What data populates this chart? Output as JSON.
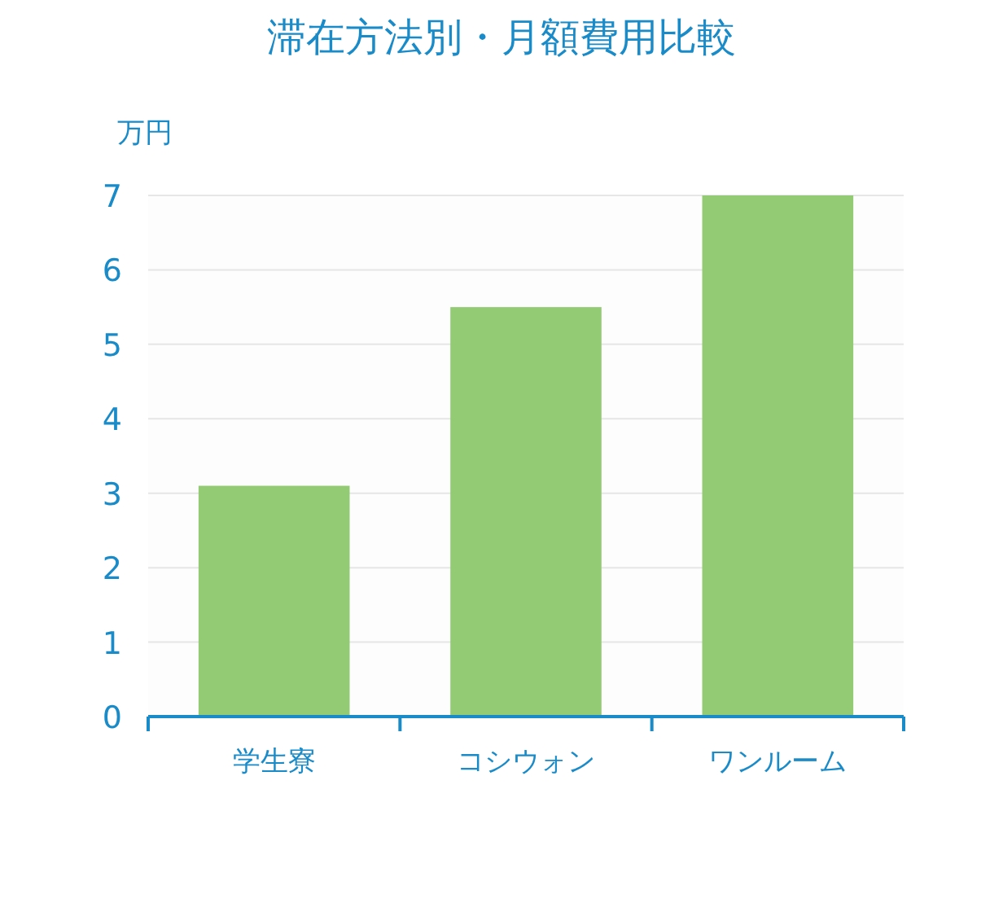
{
  "chart_data": {
    "type": "bar",
    "title": "滞在方法別・月額費用比較",
    "ylabel": "万円",
    "categories": [
      "学生寮",
      "コシウォン",
      "ワンルーム"
    ],
    "values": [
      3.1,
      5.5,
      7.0
    ],
    "color": "#92cb73",
    "ylim": [
      0,
      7
    ],
    "yticks": [
      0,
      1,
      2,
      3,
      4,
      5,
      6,
      7
    ],
    "grid": "y"
  }
}
